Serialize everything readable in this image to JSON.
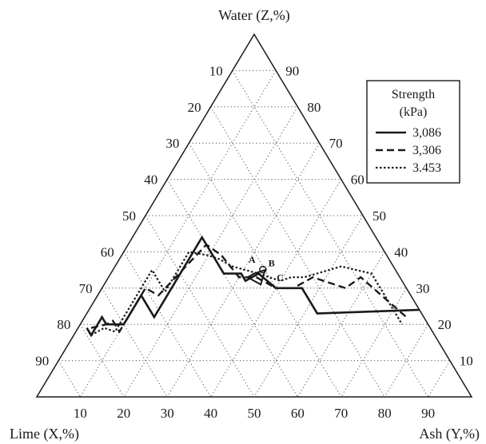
{
  "chart_data": {
    "type": "ternary",
    "axes": {
      "z": {
        "label": "Water (Z,%)",
        "ticks": [
          10,
          20,
          30,
          40,
          50,
          60,
          70,
          80,
          90
        ]
      },
      "x": {
        "label": "Lime (X,%)",
        "ticks": [
          10,
          20,
          30,
          40,
          50,
          60,
          70,
          80,
          90
        ]
      },
      "y": {
        "label": "Ash (Y,%)",
        "ticks": [
          10,
          20,
          30,
          40,
          50,
          60,
          70,
          80,
          90
        ]
      },
      "left_edge_ticks": [
        10,
        20,
        30,
        40,
        50,
        60,
        70,
        80,
        90
      ],
      "right_edge_ticks": [
        90,
        80,
        70,
        60,
        50,
        40,
        30,
        20,
        10
      ],
      "bottom_edge_ticks": [
        10,
        20,
        30,
        40,
        50,
        60,
        70,
        80,
        90
      ]
    },
    "grid": true,
    "grid_step": 10,
    "legend": {
      "title_line1": "Strength",
      "title_line2": "(kPa)",
      "placement": "top-right",
      "entries": [
        {
          "label": "3,086",
          "style": "solid"
        },
        {
          "label": "3,306",
          "style": "dashed"
        },
        {
          "label": "3.453",
          "style": "dotted"
        }
      ]
    },
    "annotations": [
      {
        "text": "A",
        "x": 32,
        "y": 31
      },
      {
        "text": "B",
        "x": 28,
        "y": 36
      },
      {
        "text": "C",
        "x": 28,
        "y": 40
      }
    ],
    "optimum_region": [
      {
        "x": 33,
        "y": 33
      },
      {
        "x": 30,
        "y": 35
      },
      {
        "x": 33,
        "y": 36
      },
      {
        "x": 35,
        "y": 32
      }
    ],
    "series": [
      {
        "name": "3,086",
        "style": "solid",
        "points": [
          {
            "x": 79,
            "y": 2
          },
          {
            "x": 79,
            "y": 4
          },
          {
            "x": 74,
            "y": 4
          },
          {
            "x": 74,
            "y": 6
          },
          {
            "x": 70,
            "y": 10
          },
          {
            "x": 62,
            "y": 10
          },
          {
            "x": 62,
            "y": 16
          },
          {
            "x": 40,
            "y": 16
          },
          {
            "x": 40,
            "y": 26
          },
          {
            "x": 36,
            "y": 30
          },
          {
            "x": 36,
            "y": 32
          },
          {
            "x": 32,
            "y": 34
          },
          {
            "x": 30,
            "y": 40
          },
          {
            "x": 24,
            "y": 46
          },
          {
            "x": 24,
            "y": 53
          },
          {
            "x": 0,
            "y": 76
          }
        ]
      },
      {
        "name": "3,306",
        "style": "dashed",
        "points": [
          {
            "x": 78,
            "y": 3
          },
          {
            "x": 74,
            "y": 6
          },
          {
            "x": 72,
            "y": 7
          },
          {
            "x": 72,
            "y": 10
          },
          {
            "x": 60,
            "y": 10
          },
          {
            "x": 58,
            "y": 14
          },
          {
            "x": 40,
            "y": 18
          },
          {
            "x": 38,
            "y": 23
          },
          {
            "x": 37,
            "y": 30
          },
          {
            "x": 33,
            "y": 34
          },
          {
            "x": 30,
            "y": 40
          },
          {
            "x": 26,
            "y": 44
          },
          {
            "x": 20,
            "y": 47
          },
          {
            "x": 14,
            "y": 56
          },
          {
            "x": 9,
            "y": 58
          },
          {
            "x": 4,
            "y": 74
          }
        ]
      },
      {
        "name": "3.453",
        "style": "dotted",
        "points": [
          {
            "x": 79,
            "y": 4
          },
          {
            "x": 75,
            "y": 6
          },
          {
            "x": 73,
            "y": 9
          },
          {
            "x": 56,
            "y": 9
          },
          {
            "x": 56,
            "y": 15
          },
          {
            "x": 45,
            "y": 15
          },
          {
            "x": 41,
            "y": 20
          },
          {
            "x": 39,
            "y": 23
          },
          {
            "x": 37,
            "y": 27
          },
          {
            "x": 32,
            "y": 34
          },
          {
            "x": 28,
            "y": 40
          },
          {
            "x": 25,
            "y": 42
          },
          {
            "x": 22,
            "y": 45
          },
          {
            "x": 12,
            "y": 52
          },
          {
            "x": 6,
            "y": 60
          },
          {
            "x": 6,
            "y": 74
          }
        ]
      }
    ]
  }
}
